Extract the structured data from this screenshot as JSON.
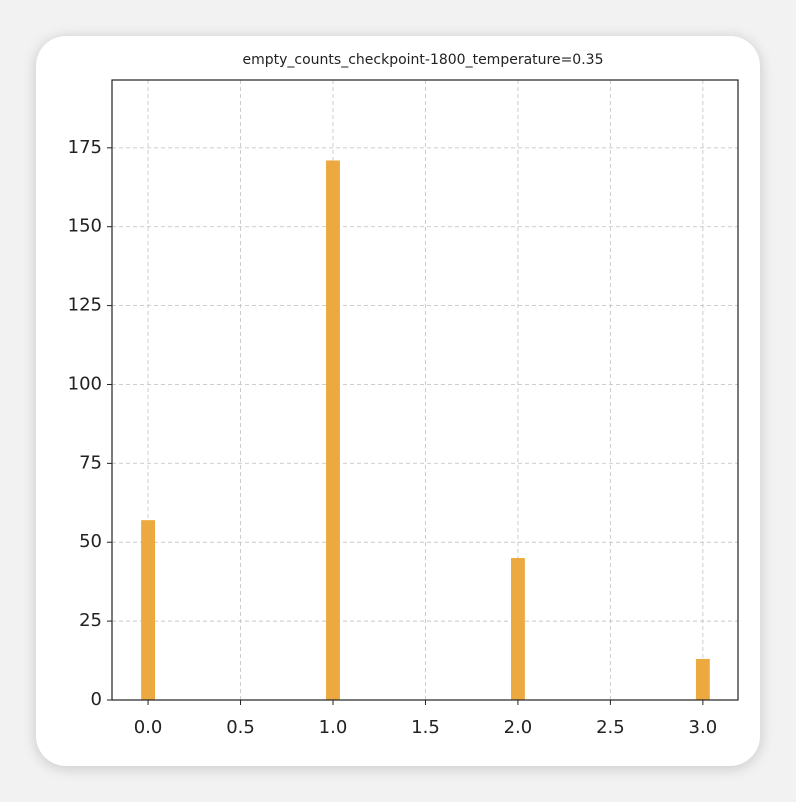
{
  "chart_data": {
    "type": "bar",
    "title": "empty_counts_checkpoint-1800_temperature=0.35",
    "x": [
      0,
      1,
      2,
      3
    ],
    "values": [
      57,
      171,
      45,
      13
    ],
    "color": "#eca93f",
    "xlim": [
      -0.195,
      3.19
    ],
    "ylim": [
      0,
      196.5
    ],
    "xticks": [
      {
        "value": 0,
        "label": "0.0"
      },
      {
        "value": 0.5,
        "label": "0.5"
      },
      {
        "value": 1,
        "label": "1.0"
      },
      {
        "value": 1.5,
        "label": "1.5"
      },
      {
        "value": 2,
        "label": "2.0"
      },
      {
        "value": 2.5,
        "label": "2.5"
      },
      {
        "value": 3,
        "label": "3.0"
      }
    ],
    "yticks": [
      0,
      25,
      50,
      75,
      100,
      125,
      150,
      175
    ],
    "grid": true
  }
}
